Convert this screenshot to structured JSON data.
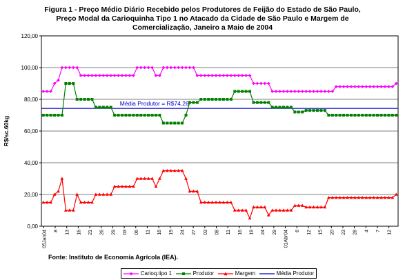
{
  "title_lines": [
    "Figura 1 - Preço  Médio Diário Recebido pelos Produtores de Feijão do Estado de São Paulo,",
    "Preço Modal  da Carioquinha Tipo 1 no Atacado da Cidade de São Paulo e Margem de",
    "Comercialização, Janeiro a Maio de 2004"
  ],
  "source_note": "Fonte: Instituto de Economia Agrícola (IEA).",
  "colors": {
    "carioq": "#ff00ff",
    "produtor": "#008000",
    "margem": "#ff0000",
    "media": "#0000cc",
    "plot_bg": "#ffffff",
    "grid": "#000000"
  },
  "chart_data": {
    "type": "line",
    "title": "Figura 1 - Preço Médio Diário Recebido pelos Produtores de Feijão do Estado de São Paulo, Preço Modal da Carioquinha Tipo 1 no Atacado da Cidade de São Paulo e Margem de Comercialização, Janeiro a Maio de 2004",
    "xlabel": "",
    "ylabel": "R$/sc.60kg",
    "ylim": [
      0,
      120
    ],
    "yticks": [
      "0,00",
      "20,00",
      "40,00",
      "60,00",
      "80,00",
      "100,00",
      "120,00"
    ],
    "grid": "horizontal",
    "legend_position": "bottom",
    "x_tick_labels": [
      "05Jan04",
      "8",
      "13",
      "16",
      "21",
      "26",
      "29",
      "03",
      "06",
      "11",
      "16",
      "19",
      "24",
      "27",
      "03",
      "08",
      "11",
      "16",
      "19",
      "24",
      "29",
      "01Abr04",
      "6",
      "12",
      "15",
      "20",
      "23",
      "28",
      "4",
      "7",
      "12"
    ],
    "annotation": "Média Produtor = R$74,26",
    "reference_line": {
      "name": "Média Produtor",
      "value": 74.26
    },
    "series": [
      {
        "name": "Carioq.tipo 1",
        "values": [
          85,
          85,
          85,
          90,
          92,
          100,
          100,
          100,
          100,
          100,
          95,
          95,
          95,
          95,
          95,
          95,
          95,
          95,
          95,
          95,
          95,
          95,
          95,
          95,
          95,
          100,
          100,
          100,
          100,
          100,
          95,
          95,
          100,
          100,
          100,
          100,
          100,
          100,
          100,
          100,
          100,
          95,
          95,
          95,
          95,
          95,
          95,
          95,
          95,
          95,
          95,
          95,
          95,
          95,
          95,
          95,
          90,
          90,
          90,
          90,
          90,
          85,
          85,
          85,
          85,
          85,
          85,
          85,
          85,
          85,
          85,
          85,
          85,
          85,
          85,
          85,
          85,
          85,
          88,
          88,
          88,
          88,
          88,
          88,
          88,
          88,
          88,
          88,
          88,
          88,
          88,
          88,
          88,
          88,
          90
        ]
      },
      {
        "name": "Produtor",
        "values": [
          70,
          70,
          70,
          70,
          70,
          70,
          90,
          90,
          90,
          80,
          80,
          80,
          80,
          80,
          75,
          75,
          75,
          75,
          75,
          70,
          70,
          70,
          70,
          70,
          70,
          70,
          70,
          70,
          70,
          70,
          70,
          70,
          65,
          65,
          65,
          65,
          65,
          65,
          70,
          78,
          78,
          78,
          80,
          80,
          80,
          80,
          80,
          80,
          80,
          80,
          80,
          85,
          85,
          85,
          85,
          85,
          78,
          78,
          78,
          78,
          78,
          75,
          75,
          75,
          75,
          75,
          75,
          72,
          72,
          72,
          73,
          73,
          73,
          73,
          73,
          73,
          70,
          70,
          70,
          70,
          70,
          70,
          70,
          70,
          70,
          70,
          70,
          70,
          70,
          70,
          70,
          70,
          70,
          70,
          70
        ]
      },
      {
        "name": "Margem",
        "values": [
          15,
          15,
          15,
          20,
          22,
          30,
          10,
          10,
          10,
          20,
          15,
          15,
          15,
          15,
          20,
          20,
          20,
          20,
          20,
          25,
          25,
          25,
          25,
          25,
          25,
          30,
          30,
          30,
          30,
          30,
          25,
          30,
          35,
          35,
          35,
          35,
          35,
          35,
          30,
          22,
          22,
          22,
          15,
          15,
          15,
          15,
          15,
          15,
          15,
          15,
          15,
          10,
          10,
          10,
          10,
          5,
          12,
          12,
          12,
          12,
          7,
          10,
          10,
          10,
          10,
          10,
          10,
          13,
          13,
          13,
          12,
          12,
          12,
          12,
          12,
          12,
          18,
          18,
          18,
          18,
          18,
          18,
          18,
          18,
          18,
          18,
          18,
          18,
          18,
          18,
          18,
          18,
          18,
          18,
          20
        ]
      }
    ]
  },
  "legend": {
    "items": [
      {
        "label": "Carioq.tipo 1",
        "color_key": "carioq",
        "marker": "diamond"
      },
      {
        "label": "Produtor",
        "color_key": "produtor",
        "marker": "square"
      },
      {
        "label": "Margem",
        "color_key": "margem",
        "marker": "triangle"
      },
      {
        "label": "Média Produtor",
        "color_key": "media",
        "marker": "none"
      }
    ]
  }
}
